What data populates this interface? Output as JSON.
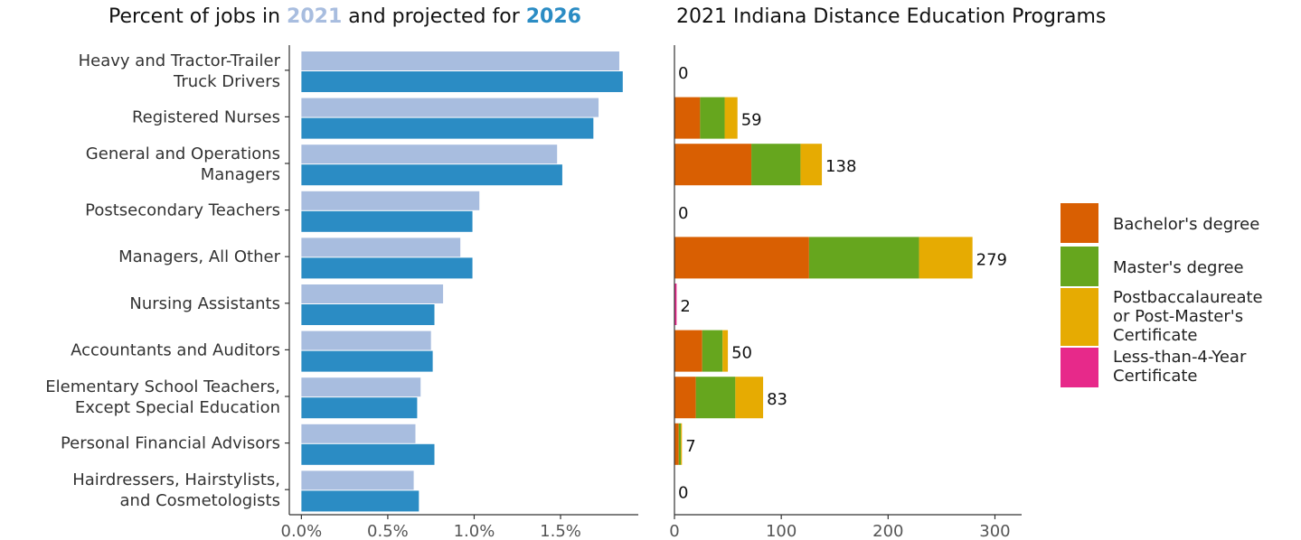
{
  "titles": {
    "left_prefix": "Percent  of jobs in",
    "left_year1": "2021",
    "left_mid": "and projected  for",
    "left_year2": "2026",
    "right": "2021 Indiana Distance  Education  Programs"
  },
  "colors": {
    "y2021": "#a8bddf",
    "y2026": "#2b8cc4",
    "bachelor": "#d95f02",
    "master": "#66a61e",
    "postbacc": "#e6ab02",
    "less4yr": "#e7298a",
    "axis": "#333333",
    "text": "#333333"
  },
  "chart_data": [
    {
      "type": "bar",
      "orientation": "horizontal",
      "title": "Percent of jobs in 2021 and projected for 2026",
      "categories": [
        "Heavy and Tractor-Trailer\nTruck Drivers",
        "Registered Nurses",
        "General and Operations\nManagers",
        "Postsecondary Teachers",
        "Managers, All Other",
        "Nursing Assistants",
        "Accountants and Auditors",
        "Elementary School Teachers,\nExcept Special Education",
        "Personal Financial Advisors",
        "Hairdressers, Hairstylists,\nand Cosmetologists"
      ],
      "series": [
        {
          "name": "2021",
          "values": [
            1.84,
            1.72,
            1.48,
            1.03,
            0.92,
            0.82,
            0.75,
            0.69,
            0.66,
            0.65
          ]
        },
        {
          "name": "2026",
          "values": [
            1.86,
            1.69,
            1.51,
            0.99,
            0.99,
            0.77,
            0.76,
            0.67,
            0.77,
            0.68
          ]
        }
      ],
      "xlim": [
        -0.07,
        1.95
      ],
      "xticks": [
        0,
        0.5,
        1.0,
        1.5
      ],
      "xtick_labels": [
        "0.0%",
        "0.5%",
        "1.0%",
        "1.5%"
      ],
      "grid": false
    },
    {
      "type": "bar",
      "orientation": "horizontal",
      "stacked": true,
      "title": "2021 Indiana Distance Education Programs",
      "series": [
        {
          "name": "Bachelor's degree",
          "values": [
            0,
            24,
            72,
            0,
            126,
            0,
            26,
            20,
            4,
            0
          ]
        },
        {
          "name": "Master's degree",
          "values": [
            0,
            23,
            46,
            0,
            103,
            0,
            19,
            37,
            2,
            0
          ]
        },
        {
          "name": "Postbaccalaureate or Post-Master's Certificate",
          "values": [
            0,
            12,
            20,
            0,
            50,
            0,
            5,
            26,
            1,
            0
          ]
        },
        {
          "name": "Less-than-4-Year Certificate",
          "values": [
            0,
            0,
            0,
            0,
            0,
            2,
            0,
            0,
            0,
            0
          ]
        }
      ],
      "totals": [
        "0",
        "59",
        "138",
        "0",
        "279",
        "2",
        "50",
        "83",
        "7",
        "0"
      ],
      "xlim": [
        0,
        325
      ],
      "xticks": [
        0,
        100,
        200,
        300
      ],
      "xtick_labels": [
        "0",
        "100",
        "200",
        "300"
      ],
      "legend": "right",
      "grid": false
    }
  ],
  "legend": {
    "items": [
      {
        "label": "Bachelor's degree",
        "color_key": "bachelor"
      },
      {
        "label": "Master's degree",
        "color_key": "master"
      },
      {
        "label": "Postbaccalaureate\nor Post-Master's\nCertificate",
        "color_key": "postbacc"
      },
      {
        "label": "Less-than-4-Year\nCertificate",
        "color_key": "less4yr"
      }
    ]
  }
}
